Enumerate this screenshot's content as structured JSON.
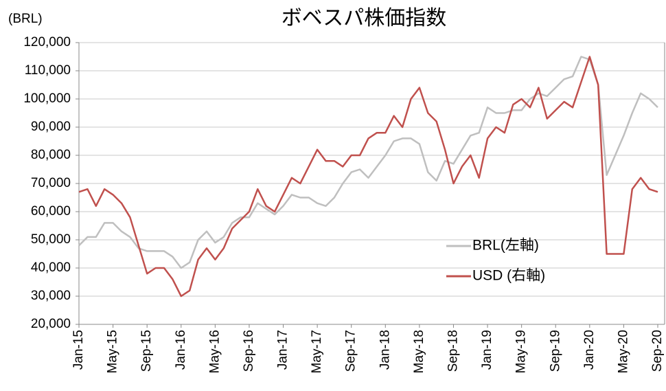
{
  "chart_data": {
    "type": "line",
    "title": "ボベスパ株価指数",
    "y_label": "(BRL)",
    "categories": [
      "Jan-15",
      null,
      null,
      null,
      "May-15",
      null,
      null,
      null,
      "Sep-15",
      null,
      null,
      null,
      "Jan-16",
      null,
      null,
      null,
      "May-16",
      null,
      null,
      null,
      "Sep-16",
      null,
      null,
      null,
      "Jan-17",
      null,
      null,
      null,
      "May-17",
      null,
      null,
      null,
      "Sep-17",
      null,
      null,
      null,
      "Jan-18",
      null,
      null,
      null,
      "May-18",
      null,
      null,
      null,
      "Sep-18",
      null,
      null,
      null,
      "Jan-19",
      null,
      null,
      null,
      "May-19",
      null,
      null,
      null,
      "Sep-19",
      null,
      null,
      null,
      "Jan-20",
      null,
      null,
      null,
      "May-20",
      null,
      null,
      null,
      "Sep-20"
    ],
    "series": [
      {
        "name": "BRL(左軸)",
        "color": "#bfbfbf",
        "values": [
          48000,
          51000,
          51000,
          56000,
          56000,
          53000,
          51000,
          47000,
          46000,
          46000,
          46000,
          44000,
          40000,
          42000,
          50000,
          53000,
          49000,
          51000,
          56000,
          58000,
          58000,
          63000,
          61000,
          59000,
          62000,
          66000,
          65000,
          65000,
          63000,
          62000,
          65000,
          70000,
          74000,
          75000,
          72000,
          76000,
          80000,
          85000,
          86000,
          86000,
          84000,
          74000,
          71000,
          78000,
          77000,
          82000,
          87000,
          88000,
          97000,
          95000,
          95000,
          96000,
          96000,
          100000,
          102000,
          101000,
          104000,
          107000,
          108000,
          115000,
          114000,
          105000,
          73000,
          80000,
          87000,
          95000,
          102000,
          100000,
          97000
        ]
      },
      {
        "name": "USD (右軸)",
        "color": "#c0504d",
        "values": [
          67000,
          68000,
          62000,
          68000,
          66000,
          63000,
          58000,
          48000,
          38000,
          40000,
          40000,
          36000,
          30000,
          32000,
          43000,
          47000,
          43000,
          47000,
          54000,
          57000,
          60000,
          68000,
          62000,
          60000,
          66000,
          72000,
          70000,
          76000,
          82000,
          78000,
          78000,
          76000,
          80000,
          80000,
          86000,
          88000,
          88000,
          94000,
          90000,
          100000,
          104000,
          95000,
          92000,
          82000,
          70000,
          76000,
          80000,
          72000,
          86000,
          90000,
          88000,
          98000,
          100000,
          97000,
          104000,
          93000,
          96000,
          99000,
          97000,
          106000,
          115000,
          105000,
          45000,
          45000,
          45000,
          68000,
          72000,
          68000,
          67000
        ]
      }
    ],
    "ylim": [
      20000,
      120000
    ],
    "yticks": [
      {
        "value": 20000,
        "label": "20,000"
      },
      {
        "value": 30000,
        "label": "30,000"
      },
      {
        "value": 40000,
        "label": "40,000"
      },
      {
        "value": 50000,
        "label": "50,000"
      },
      {
        "value": 60000,
        "label": "60,000"
      },
      {
        "value": 70000,
        "label": "70,000"
      },
      {
        "value": 80000,
        "label": "80,000"
      },
      {
        "value": 90000,
        "label": "90,000"
      },
      {
        "value": 100000,
        "label": "100,000"
      },
      {
        "value": 110000,
        "label": "110,000"
      },
      {
        "value": 120000,
        "label": "120,000"
      }
    ],
    "grid": true,
    "legend": "center-right"
  }
}
